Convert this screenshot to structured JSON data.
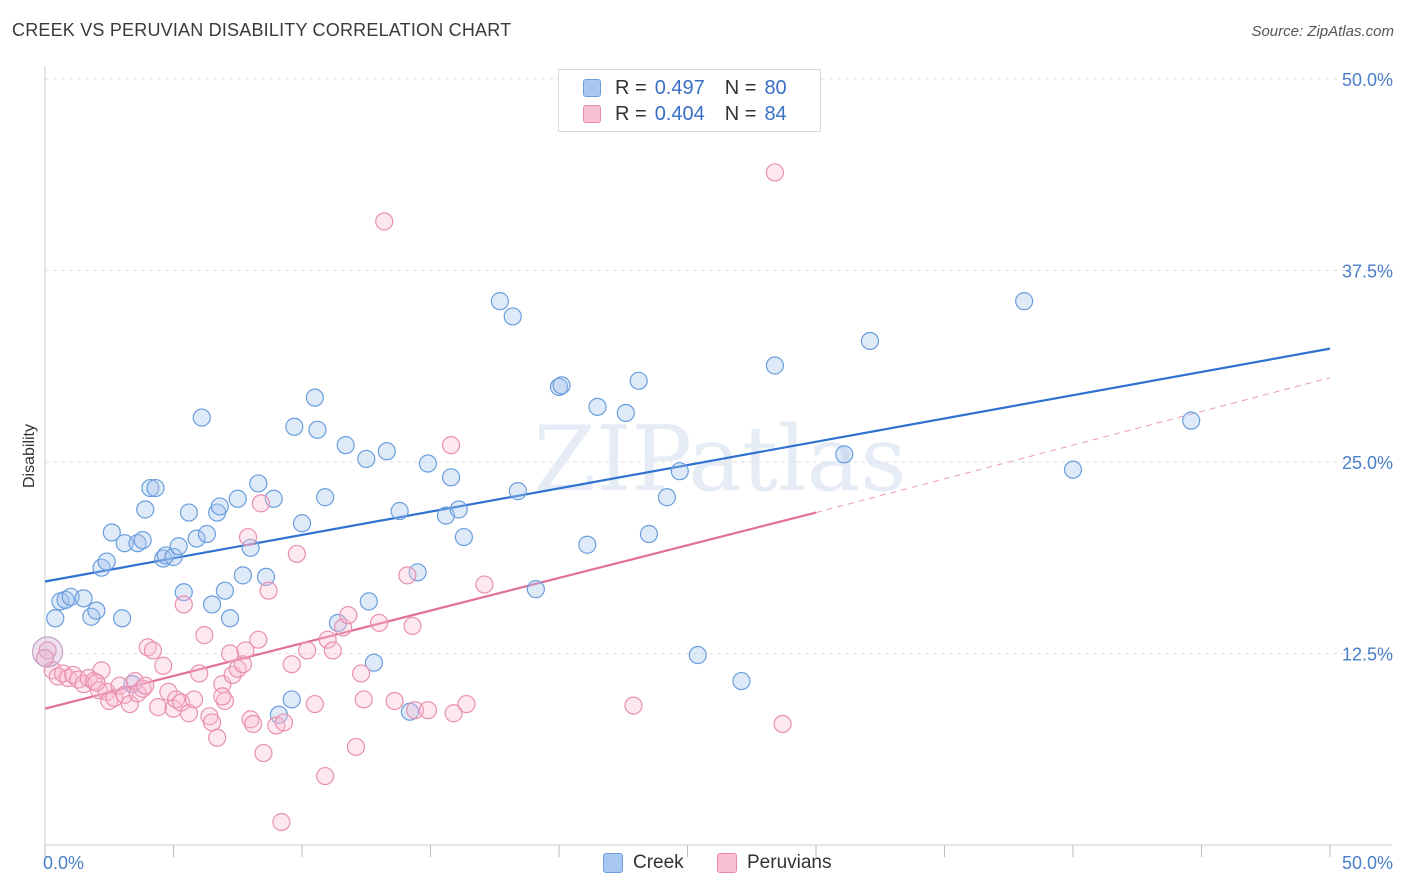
{
  "title": "CREEK VS PERUVIAN DISABILITY CORRELATION CHART",
  "source": "Source: ZipAtlas.com",
  "watermark": "ZIPatlas",
  "legend_top": {
    "rows": [
      {
        "r_label": "R =",
        "r_value": "0.497",
        "n_label": "N =",
        "n_value": "80",
        "color": "#a8c8f0",
        "border": "#6a9ede"
      },
      {
        "r_label": "R =",
        "r_value": "0.404",
        "n_label": "N =",
        "n_value": "84",
        "color": "#f8c0d4",
        "border": "#e88aaa"
      }
    ]
  },
  "legend_bottom": {
    "series": [
      {
        "name": "Creek",
        "color": "#a8c8f0",
        "border": "#6a9ede"
      },
      {
        "name": "Peruvians",
        "color": "#f8c0d4",
        "border": "#e88aaa"
      }
    ]
  },
  "colors": {
    "creek_fill": "rgba(164,196,238,0.35)",
    "creek_stroke": "#6a9ede",
    "creek_line": "#2f72d0",
    "peru_fill": "rgba(248,190,210,0.35)",
    "peru_stroke": "#e890b0",
    "peru_line": "#e0709a",
    "grid": "#e0e0e0",
    "tick_text": "#4a7fc9"
  },
  "chart_data": {
    "type": "scatter",
    "title": "CREEK VS PERUVIAN DISABILITY CORRELATION CHART",
    "xlabel": "",
    "ylabel": "Disability",
    "xlim": [
      0,
      50
    ],
    "ylim": [
      0,
      50
    ],
    "x_tick_labels": [
      "0.0%",
      "50.0%"
    ],
    "y_ticks": [
      12.5,
      25.0,
      37.5,
      50.0
    ],
    "y_tick_labels": [
      "12.5%",
      "25.0%",
      "37.5%",
      "50.0%"
    ],
    "legend_position": "top-center",
    "grid": "horizontal dashed",
    "series": [
      {
        "name": "Creek",
        "r": 0.497,
        "n": 80,
        "trend": {
          "x": [
            0,
            50
          ],
          "y": [
            17.2,
            32.4
          ]
        },
        "points": [
          [
            0.4,
            14.8
          ],
          [
            0.6,
            15.9
          ],
          [
            0.8,
            16.0
          ],
          [
            1.0,
            16.2
          ],
          [
            1.5,
            16.1
          ],
          [
            1.8,
            14.9
          ],
          [
            2.0,
            15.3
          ],
          [
            2.2,
            18.1
          ],
          [
            2.4,
            18.5
          ],
          [
            2.6,
            20.4
          ],
          [
            3.0,
            14.8
          ],
          [
            3.1,
            19.7
          ],
          [
            3.4,
            10.5
          ],
          [
            3.6,
            19.7
          ],
          [
            3.8,
            19.9
          ],
          [
            3.9,
            21.9
          ],
          [
            4.1,
            23.3
          ],
          [
            4.3,
            23.3
          ],
          [
            4.6,
            18.7
          ],
          [
            4.7,
            18.9
          ],
          [
            5.0,
            18.8
          ],
          [
            5.2,
            19.5
          ],
          [
            5.4,
            16.5
          ],
          [
            5.6,
            21.7
          ],
          [
            5.9,
            20.0
          ],
          [
            6.1,
            27.9
          ],
          [
            6.3,
            20.3
          ],
          [
            6.5,
            15.7
          ],
          [
            6.7,
            21.7
          ],
          [
            7.0,
            16.6
          ],
          [
            7.2,
            14.8
          ],
          [
            7.5,
            22.6
          ],
          [
            7.7,
            17.6
          ],
          [
            8.0,
            19.4
          ],
          [
            8.3,
            23.6
          ],
          [
            8.6,
            17.5
          ],
          [
            8.9,
            22.6
          ],
          [
            9.1,
            8.5
          ],
          [
            9.6,
            9.5
          ],
          [
            9.7,
            27.3
          ],
          [
            10.0,
            21.0
          ],
          [
            10.5,
            29.2
          ],
          [
            10.6,
            27.1
          ],
          [
            10.9,
            22.7
          ],
          [
            11.4,
            14.5
          ],
          [
            11.7,
            26.1
          ],
          [
            12.5,
            25.2
          ],
          [
            12.8,
            11.9
          ],
          [
            13.3,
            25.7
          ],
          [
            13.8,
            21.8
          ],
          [
            14.2,
            8.7
          ],
          [
            14.5,
            17.8
          ],
          [
            14.9,
            24.9
          ],
          [
            15.6,
            21.5
          ],
          [
            15.8,
            24.0
          ],
          [
            16.1,
            21.9
          ],
          [
            16.3,
            20.1
          ],
          [
            17.7,
            35.5
          ],
          [
            18.2,
            34.5
          ],
          [
            18.4,
            23.1
          ],
          [
            19.1,
            16.7
          ],
          [
            20.0,
            29.9
          ],
          [
            20.1,
            30.0
          ],
          [
            21.1,
            19.6
          ],
          [
            21.5,
            28.6
          ],
          [
            22.6,
            28.2
          ],
          [
            23.1,
            30.3
          ],
          [
            23.5,
            20.3
          ],
          [
            24.2,
            22.7
          ],
          [
            24.7,
            24.4
          ],
          [
            25.4,
            12.4
          ],
          [
            27.1,
            10.7
          ],
          [
            28.4,
            31.3
          ],
          [
            31.1,
            25.5
          ],
          [
            32.1,
            32.9
          ],
          [
            38.1,
            35.5
          ],
          [
            40.0,
            24.5
          ],
          [
            44.6,
            27.7
          ],
          [
            12.6,
            15.9
          ],
          [
            6.8,
            22.1
          ]
        ]
      },
      {
        "name": "Peruvians",
        "r": 0.404,
        "n": 84,
        "trend": {
          "x": [
            0,
            30
          ],
          "y": [
            8.9,
            21.7
          ]
        },
        "trend_extension": {
          "x": [
            30,
            50
          ],
          "y": [
            21.7,
            30.5
          ]
        },
        "points": [
          [
            0.1,
            12.7
          ],
          [
            0.3,
            11.4
          ],
          [
            0.5,
            11.0
          ],
          [
            0.7,
            11.2
          ],
          [
            0.9,
            10.9
          ],
          [
            1.1,
            11.1
          ],
          [
            1.3,
            10.8
          ],
          [
            1.5,
            10.5
          ],
          [
            1.7,
            10.9
          ],
          [
            1.9,
            10.7
          ],
          [
            2.1,
            10.1
          ],
          [
            2.2,
            11.4
          ],
          [
            2.4,
            10.0
          ],
          [
            2.5,
            9.4
          ],
          [
            2.7,
            9.6
          ],
          [
            2.9,
            10.4
          ],
          [
            3.1,
            9.8
          ],
          [
            3.3,
            9.2
          ],
          [
            3.5,
            10.7
          ],
          [
            3.6,
            9.9
          ],
          [
            3.8,
            10.2
          ],
          [
            3.9,
            10.4
          ],
          [
            4.0,
            12.9
          ],
          [
            4.2,
            12.7
          ],
          [
            4.4,
            9.0
          ],
          [
            4.6,
            11.7
          ],
          [
            4.8,
            10.0
          ],
          [
            5.0,
            8.9
          ],
          [
            5.1,
            9.5
          ],
          [
            5.3,
            9.3
          ],
          [
            5.4,
            15.7
          ],
          [
            5.6,
            8.6
          ],
          [
            5.8,
            9.5
          ],
          [
            6.0,
            11.2
          ],
          [
            6.2,
            13.7
          ],
          [
            6.4,
            8.4
          ],
          [
            6.5,
            8.0
          ],
          [
            6.7,
            7.0
          ],
          [
            6.9,
            10.5
          ],
          [
            7.0,
            9.4
          ],
          [
            7.2,
            12.5
          ],
          [
            7.3,
            11.1
          ],
          [
            7.5,
            11.5
          ],
          [
            7.7,
            11.8
          ],
          [
            7.8,
            12.7
          ],
          [
            7.9,
            20.1
          ],
          [
            8.0,
            8.2
          ],
          [
            8.1,
            7.9
          ],
          [
            8.3,
            13.4
          ],
          [
            8.4,
            22.3
          ],
          [
            8.5,
            6.0
          ],
          [
            8.7,
            16.6
          ],
          [
            9.0,
            7.8
          ],
          [
            9.2,
            1.5
          ],
          [
            9.3,
            8.0
          ],
          [
            9.6,
            11.8
          ],
          [
            9.8,
            19.0
          ],
          [
            10.2,
            12.7
          ],
          [
            10.5,
            9.2
          ],
          [
            10.9,
            4.5
          ],
          [
            11.0,
            13.4
          ],
          [
            11.2,
            12.7
          ],
          [
            11.6,
            14.2
          ],
          [
            11.8,
            15.0
          ],
          [
            12.1,
            6.4
          ],
          [
            12.3,
            11.2
          ],
          [
            12.4,
            9.5
          ],
          [
            13.0,
            14.5
          ],
          [
            13.2,
            40.7
          ],
          [
            13.6,
            9.4
          ],
          [
            14.1,
            17.6
          ],
          [
            14.3,
            14.3
          ],
          [
            14.4,
            8.8
          ],
          [
            14.9,
            8.8
          ],
          [
            15.8,
            26.1
          ],
          [
            15.9,
            8.6
          ],
          [
            16.4,
            9.2
          ],
          [
            17.1,
            17.0
          ],
          [
            22.9,
            9.1
          ],
          [
            28.4,
            43.9
          ],
          [
            28.7,
            7.9
          ],
          [
            0.0,
            12.2
          ],
          [
            2.0,
            10.6
          ],
          [
            6.9,
            9.7
          ]
        ]
      }
    ]
  }
}
